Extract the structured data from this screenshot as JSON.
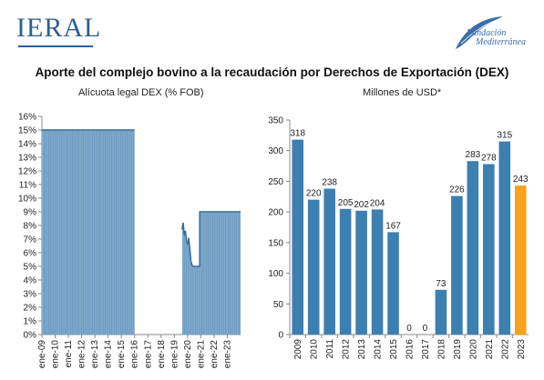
{
  "header": {
    "left_logo": "IERAL",
    "right_logo": [
      "Fundación",
      "Mediterránea"
    ]
  },
  "title": "Aporte del complejo bovino a la recaudación por Derechos de Exportación (DEX)",
  "colors": {
    "dex_bar": "#7fa9cc",
    "dex_line": "#2e6b9a",
    "bar": "#3c7fb1",
    "bar_highlight": "#f6a21b",
    "logo": "#2f5e93"
  },
  "chart_data": [
    {
      "type": "area",
      "subtitle": "Alícuota legal DEX (% FOB)",
      "ylim": [
        0,
        16
      ],
      "yticks": [
        "0%",
        "1%",
        "2%",
        "3%",
        "4%",
        "5%",
        "6%",
        "7%",
        "8%",
        "9%",
        "10%",
        "11%",
        "12%",
        "13%",
        "14%",
        "15%",
        "16%"
      ],
      "xticks": [
        "ene-09",
        "ene-10",
        "ene-11",
        "ene-12",
        "ene-13",
        "ene-14",
        "ene-15",
        "ene-16",
        "ene-17",
        "ene-18",
        "ene-19",
        "ene-20",
        "ene-21",
        "ene-22",
        "ene-23"
      ],
      "grid": false,
      "series": [
        {
          "x": [
            "ene-09",
            "dic-15",
            "ene-16",
            "jul-19",
            "ago-19",
            "sep-19",
            "oct-19",
            "nov-19",
            "dic-19",
            "ene-20",
            "feb-20",
            "mar-20",
            "abr-20",
            "may-20",
            "jun-20",
            "jul-20",
            "ago-20",
            "sep-20",
            "oct-20",
            "nov-20",
            "dic-20",
            "ene-21",
            "dic-23"
          ],
          "values": [
            15,
            15,
            0,
            0,
            7.7,
            8.2,
            7.3,
            7.6,
            6.9,
            6.6,
            7.1,
            6.3,
            5.4,
            5.1,
            5.0,
            5.0,
            5.0,
            5.0,
            5.0,
            5.0,
            9,
            9,
            9
          ]
        }
      ]
    },
    {
      "type": "bar",
      "subtitle": "Millones de USD*",
      "categories": [
        "2009",
        "2010",
        "2011",
        "2012",
        "2013",
        "2014",
        "2015",
        "2016",
        "2017",
        "2018",
        "2019",
        "2020",
        "2021",
        "2022",
        "2023"
      ],
      "values": [
        318,
        220,
        238,
        205,
        202,
        204,
        167,
        0,
        0,
        73,
        226,
        283,
        278,
        315,
        243
      ],
      "value_labels": [
        "318",
        "220",
        "238",
        "205",
        "202",
        "204",
        "167",
        "0",
        "0",
        "73",
        "226",
        "283",
        "278",
        "315",
        "243"
      ],
      "highlight": "2023",
      "ylim": [
        0,
        350
      ],
      "yticks": [
        "0",
        "50",
        "100",
        "150",
        "200",
        "250",
        "300",
        "350"
      ],
      "grid": false
    }
  ]
}
